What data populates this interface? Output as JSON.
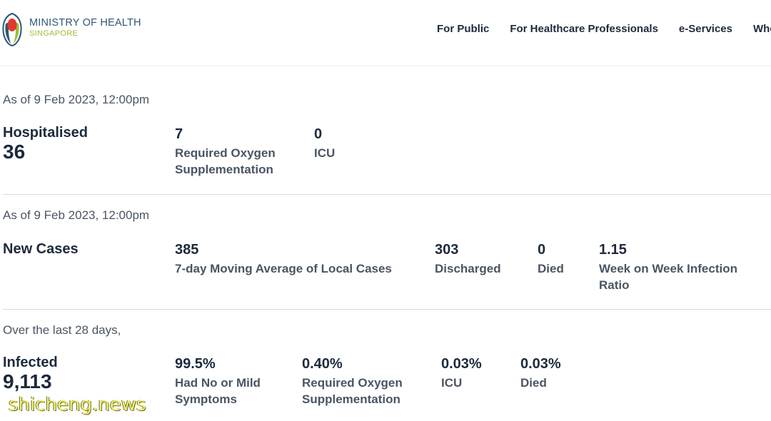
{
  "brand": {
    "title": "MINISTRY OF HEALTH",
    "subtitle": "SINGAPORE",
    "colors": {
      "navy": "#2f5776",
      "green": "#9bbf35",
      "red": "#e03a2f"
    }
  },
  "nav": {
    "items": [
      {
        "label": "For Public"
      },
      {
        "label": "For Healthcare Professionals"
      },
      {
        "label": "e-Services"
      },
      {
        "label": "Who V"
      }
    ]
  },
  "hospitalised": {
    "as_of": "As of 9 Feb 2023, 12:00pm",
    "label": "Hospitalised",
    "value": "36",
    "oxygen": {
      "value": "7",
      "label": "Required Oxygen Supplementation"
    },
    "icu": {
      "value": "0",
      "label": "ICU"
    }
  },
  "new_cases": {
    "as_of": "As of 9 Feb 2023, 12:00pm",
    "label": "New Cases",
    "moving_avg": {
      "value": "385",
      "label": "7-day Moving Average of Local Cases"
    },
    "discharged": {
      "value": "303",
      "label": "Discharged"
    },
    "died": {
      "value": "0",
      "label": "Died"
    },
    "ratio": {
      "value": "1.15",
      "label": "Week on Week Infection Ratio"
    }
  },
  "infected": {
    "period": "Over the last 28 days,",
    "label": "Infected",
    "value": "9,113",
    "mild": {
      "value": "99.5%",
      "label": "Had No or Mild Symptoms"
    },
    "oxygen": {
      "value": "0.40%",
      "label": "Required Oxygen Supplementation"
    },
    "icu": {
      "value": "0.03%",
      "label": "ICU"
    },
    "died": {
      "value": "0.03%",
      "label": "Died"
    }
  },
  "watermark": "shicheng.news"
}
